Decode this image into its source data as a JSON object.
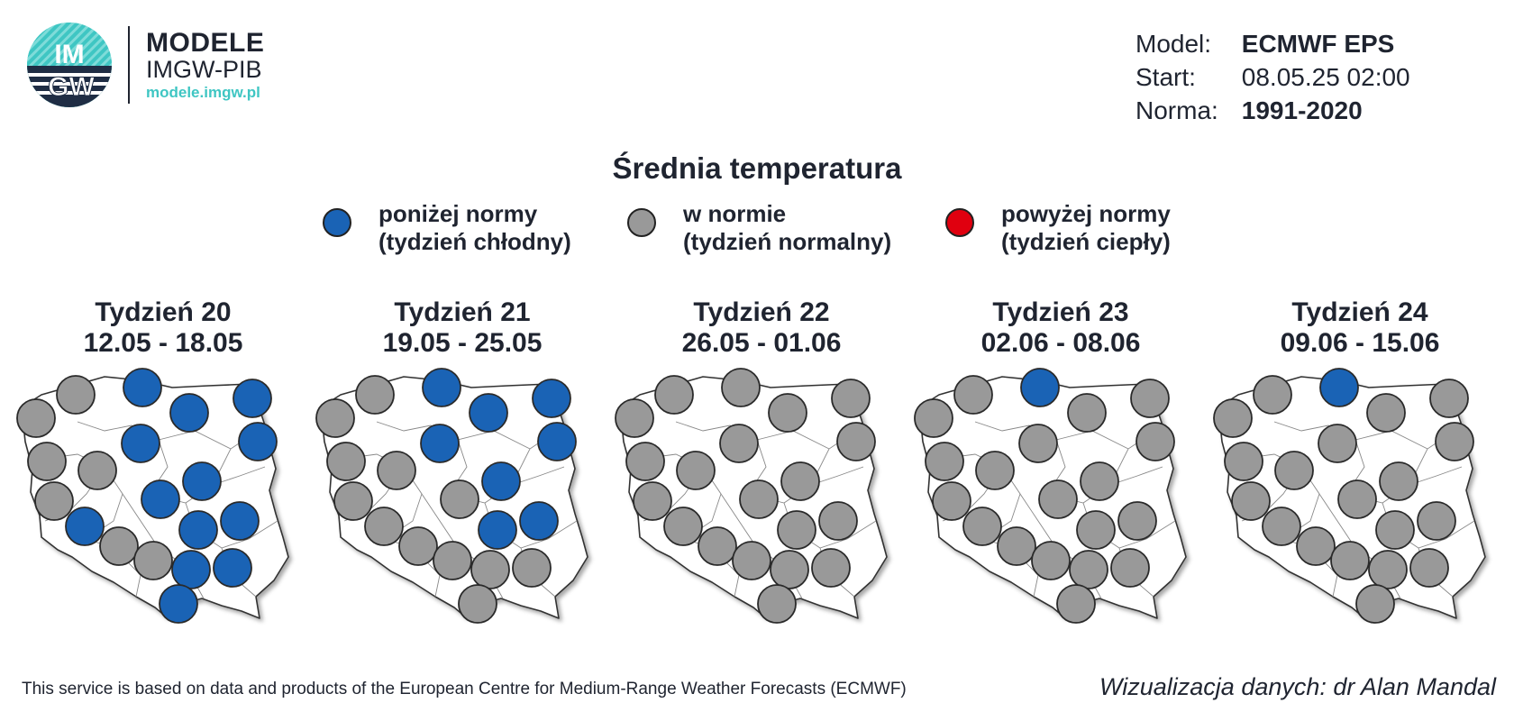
{
  "logo": {
    "circle_top": "IM",
    "circle_bottom": "GW",
    "line1": "MODELE",
    "line2": "IMGW-PIB",
    "line3": "modele.imgw.pl"
  },
  "meta": {
    "model_label": "Model:",
    "model_value": "ECMWF EPS",
    "start_label": "Start:",
    "start_value": "08.05.25 02:00",
    "norm_label": "Norma:",
    "norm_value": "1991-2020"
  },
  "title": "Średnia temperatura",
  "legend": [
    {
      "line1": "poniżej normy",
      "line2": "(tydzień chłodny)",
      "color": "#1a63b5"
    },
    {
      "line1": "w normie",
      "line2": "(tydzień normalny)",
      "color": "#999999"
    },
    {
      "line1": "powyżej normy",
      "line2": "(tydzień ciepły)",
      "color": "#e0000f"
    }
  ],
  "colors": {
    "below": "#1a63b5",
    "normal": "#999999",
    "above": "#e0000f"
  },
  "weeks": [
    {
      "title": "Tydzień 20",
      "dates": "12.05 - 18.05",
      "stations": [
        "normal",
        "normal",
        "below",
        "below",
        "below",
        "below",
        "below",
        "normal",
        "normal",
        "below",
        "normal",
        "below",
        "below",
        "below",
        "below",
        "normal",
        "normal",
        "below",
        "below",
        "below"
      ]
    },
    {
      "title": "Tydzień 21",
      "dates": "19.05 - 25.05",
      "stations": [
        "normal",
        "normal",
        "below",
        "below",
        "below",
        "below",
        "below",
        "normal",
        "normal",
        "below",
        "normal",
        "normal",
        "normal",
        "below",
        "below",
        "normal",
        "normal",
        "normal",
        "normal",
        "normal"
      ]
    },
    {
      "title": "Tydzień 22",
      "dates": "26.05 - 01.06",
      "stations": [
        "normal",
        "normal",
        "normal",
        "normal",
        "normal",
        "normal",
        "normal",
        "normal",
        "normal",
        "normal",
        "normal",
        "normal",
        "normal",
        "normal",
        "normal",
        "normal",
        "normal",
        "normal",
        "normal",
        "normal"
      ]
    },
    {
      "title": "Tydzień 23",
      "dates": "02.06 - 08.06",
      "stations": [
        "normal",
        "normal",
        "below",
        "normal",
        "normal",
        "normal",
        "normal",
        "normal",
        "normal",
        "normal",
        "normal",
        "normal",
        "normal",
        "normal",
        "normal",
        "normal",
        "normal",
        "normal",
        "normal",
        "normal"
      ]
    },
    {
      "title": "Tydzień 24",
      "dates": "09.06 - 15.06",
      "stations": [
        "normal",
        "normal",
        "below",
        "normal",
        "normal",
        "normal",
        "normal",
        "normal",
        "normal",
        "normal",
        "normal",
        "normal",
        "normal",
        "normal",
        "normal",
        "normal",
        "normal",
        "normal",
        "normal",
        "normal"
      ]
    }
  ],
  "footer": {
    "left": "This service is based on data and products of the European Centre for Medium-Range Weather Forecasts (ECMWF)",
    "right": "Wizualizacja danych: dr Alan Mandal"
  }
}
